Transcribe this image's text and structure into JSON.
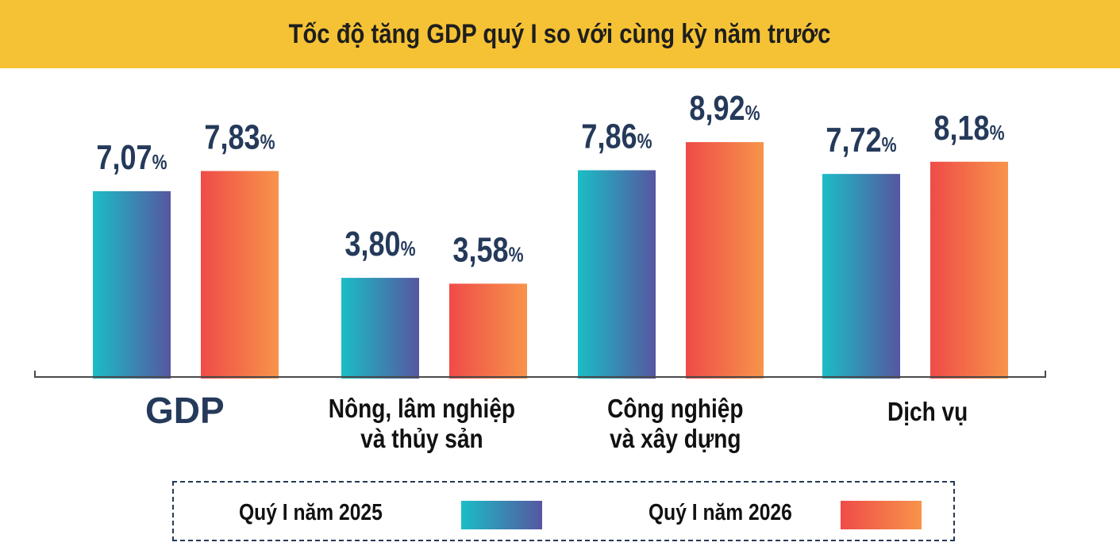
{
  "title": "Tốc độ tăng GDP quý I so với cùng kỳ năm trước",
  "colors": {
    "title_bg": "#f5c235",
    "series_2025": [
      "#1bbdc6",
      "#5656a0"
    ],
    "series_2026": [
      "#ef4b48",
      "#f7944a"
    ],
    "value_text": "#253a5a"
  },
  "chart_data": {
    "type": "bar",
    "title": "Tốc độ tăng GDP quý I so với cùng kỳ năm trước",
    "categories": [
      "GDP",
      "Nông, lâm nghiệp và thủy sản",
      "Công nghiệp và xây dựng",
      "Dịch vụ"
    ],
    "category_lines": [
      [
        "GDP"
      ],
      [
        "Nông, lâm nghiệp",
        "và thủy sản"
      ],
      [
        "Công nghiệp",
        "và xây dựng"
      ],
      [
        "Dịch vụ"
      ]
    ],
    "series": [
      {
        "name": "Quý I năm 2025",
        "values": [
          7.07,
          3.8,
          7.86,
          7.72
        ],
        "labels": [
          "7,07",
          "3,80",
          "7,86",
          "7,72"
        ]
      },
      {
        "name": "Quý I năm 2026",
        "values": [
          7.83,
          3.58,
          8.92,
          8.18
        ],
        "labels": [
          "7,83",
          "3,58",
          "8,92",
          "8,18"
        ]
      }
    ],
    "unit": "%",
    "ylim": [
      0,
      10
    ],
    "grid": false,
    "legend": "bottom"
  },
  "legend": {
    "items": [
      "Quý I năm 2025",
      "Quý I năm 2026"
    ]
  }
}
